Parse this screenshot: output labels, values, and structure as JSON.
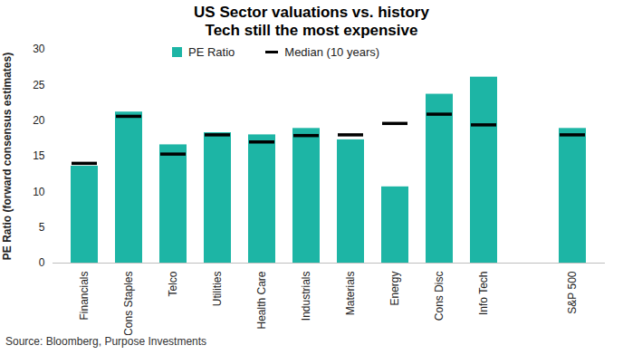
{
  "chart_data": {
    "type": "bar",
    "title": "US Sector valuations vs. history",
    "subtitle": "Tech still the most expensive",
    "y_label": "PE Ratio (forward consensus estimates)",
    "source": "Source: Bloomberg, Purpose Investments",
    "categories": [
      "Financials",
      "Cons Staples",
      "Telco",
      "Utilities",
      "Health Care",
      "Industrials",
      "Materials",
      "Energy",
      "Cons Disc",
      "Info Tech",
      null,
      "S&P 500"
    ],
    "series": [
      {
        "name": "PE Ratio",
        "type": "bar",
        "color": "#1db5a5",
        "values": [
          13.6,
          21.2,
          16.6,
          18.3,
          18.0,
          18.9,
          17.3,
          10.7,
          23.7,
          26.1,
          null,
          18.9
        ]
      },
      {
        "name": "Median (10 years)",
        "type": "scatter",
        "marker": "dash",
        "color": "#000000",
        "values": [
          14.0,
          20.6,
          15.3,
          18.0,
          17.0,
          17.9,
          18.0,
          19.6,
          20.9,
          19.4,
          null,
          18.0
        ]
      }
    ],
    "ylim": [
      0,
      30
    ],
    "yticks": [
      0,
      5,
      10,
      15,
      20,
      25,
      30
    ],
    "grid": false,
    "legend": "top"
  }
}
